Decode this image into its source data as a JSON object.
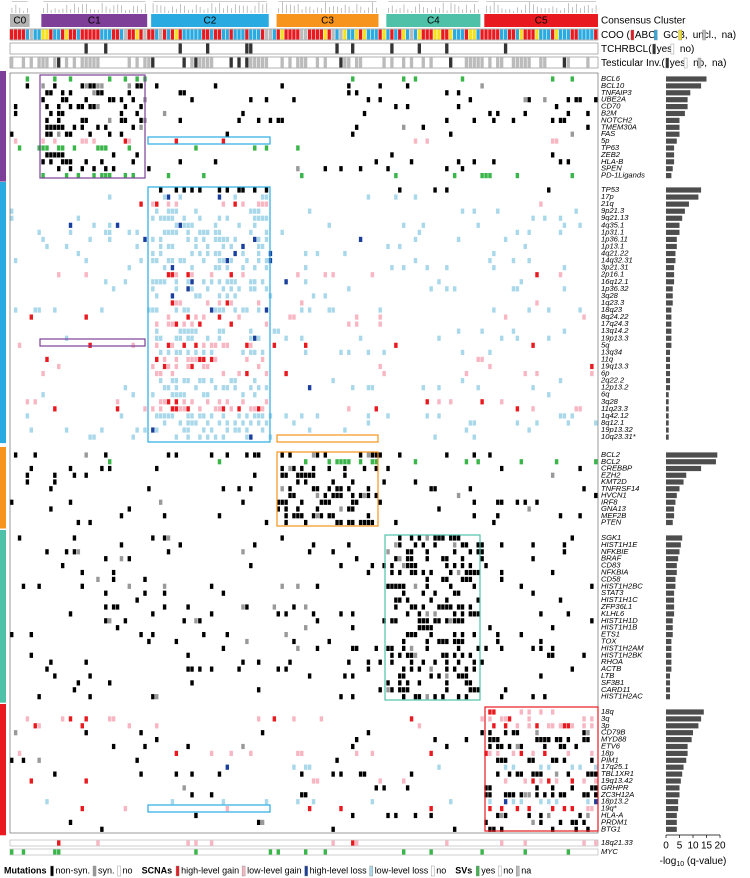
{
  "chart_data": {
    "type": "bar",
    "orientation": "horizontal",
    "clusters": [
      {
        "name": "C0",
        "color": "#b3b3b3"
      },
      {
        "name": "C1",
        "color": "#7d3f98"
      },
      {
        "name": "C2",
        "color": "#29abe2"
      },
      {
        "name": "C3",
        "color": "#f7941d"
      },
      {
        "name": "C4",
        "color": "#4fc1a8"
      },
      {
        "name": "C5",
        "color": "#e8191f"
      }
    ],
    "cluster_label": "Consensus Cluster",
    "annotations": [
      {
        "label": "COO (",
        "items": [
          {
            "label": "ABC,",
            "color": "#e8191f"
          },
          {
            "label": "GCB,",
            "color": "#29abe2"
          },
          {
            "label": "uncl.,",
            "color": "#f5e11d"
          },
          {
            "label": "na)",
            "color": "#bbbbbb"
          }
        ]
      },
      {
        "label": "TCHRBCL(",
        "items": [
          {
            "label": "yes,",
            "color": "#333333"
          },
          {
            "label": "no)",
            "color": "#ffffff"
          }
        ]
      },
      {
        "label": "Testicular Inv.(",
        "items": [
          {
            "label": "yes,",
            "color": "#333333"
          },
          {
            "label": "no,",
            "color": "#ffffff"
          },
          {
            "label": "na)",
            "color": "#bbbbbb"
          }
        ]
      }
    ],
    "groups": [
      {
        "color": "#7d3f98",
        "rows": [
          {
            "label": "BCL6",
            "color": "#39b54a",
            "value": 15
          },
          {
            "label": "BCL10",
            "color": "#000000",
            "value": 13
          },
          {
            "label": "TNFAIP3",
            "color": "#000000",
            "value": 9
          },
          {
            "label": "UBE2A",
            "color": "#000000",
            "value": 8
          },
          {
            "label": "CD70",
            "color": "#000000",
            "value": 8
          },
          {
            "label": "B2M",
            "color": "#000000",
            "value": 7
          },
          {
            "label": "NOTCH2",
            "color": "#000000",
            "value": 5
          },
          {
            "label": "TMEM30A",
            "color": "#000000",
            "value": 5
          },
          {
            "label": "FAS",
            "color": "#000000",
            "value": 5
          },
          {
            "label": "5p",
            "color": "#e8191f",
            "value": 4
          },
          {
            "label": "TP63",
            "color": "#39b54a",
            "value": 3
          },
          {
            "label": "ZEB2",
            "color": "#000000",
            "value": 3
          },
          {
            "label": "HLA-B",
            "color": "#000000",
            "value": 3
          },
          {
            "label": "SPEN",
            "color": "#000000",
            "value": 2.5
          },
          {
            "label": "PD-1Ligands",
            "color": "#39b54a",
            "value": 2
          }
        ]
      },
      {
        "color": "#29abe2",
        "rows": [
          {
            "label": "TP53",
            "color": "#000000",
            "value": 13
          },
          {
            "label": "17p",
            "color": "#29abe2",
            "value": 12
          },
          {
            "label": "21q",
            "color": "#e8191f",
            "value": 8.5
          },
          {
            "label": "9p21.3",
            "color": "#29abe2",
            "value": 7
          },
          {
            "label": "9q21.13",
            "color": "#29abe2",
            "value": 6
          },
          {
            "label": "4q35.1",
            "color": "#29abe2",
            "value": 5
          },
          {
            "label": "1p31.1",
            "color": "#29abe2",
            "value": 5
          },
          {
            "label": "1p36.11",
            "color": "#29abe2",
            "value": 4
          },
          {
            "label": "1p13.1",
            "color": "#29abe2",
            "value": 4
          },
          {
            "label": "4q21.22",
            "color": "#29abe2",
            "value": 3.5
          },
          {
            "label": "14q32.31",
            "color": "#29abe2",
            "value": 3.5
          },
          {
            "label": "3p21.31",
            "color": "#29abe2",
            "value": 3
          },
          {
            "label": "2p16.1",
            "color": "#e8191f",
            "value": 3
          },
          {
            "label": "16q12.1",
            "color": "#29abe2",
            "value": 3
          },
          {
            "label": "1p36.32",
            "color": "#29abe2",
            "value": 2.5
          },
          {
            "label": "3q28",
            "color": "#29abe2",
            "value": 2.5
          },
          {
            "label": "1q23.3",
            "color": "#e8191f",
            "value": 2.5
          },
          {
            "label": "18q23",
            "color": "#29abe2",
            "value": 2
          },
          {
            "label": "8q24.22",
            "color": "#e8191f",
            "value": 2
          },
          {
            "label": "17q24.3",
            "color": "#e8191f",
            "value": 2
          },
          {
            "label": "13q14.2",
            "color": "#29abe2",
            "value": 2
          },
          {
            "label": "19p13.3",
            "color": "#29abe2",
            "value": 2
          },
          {
            "label": "5q",
            "color": "#e8191f",
            "value": 2
          },
          {
            "label": "13q34",
            "color": "#29abe2",
            "value": 1.5
          },
          {
            "label": "11q",
            "color": "#e8191f",
            "value": 1.5
          },
          {
            "label": "19q13.3",
            "color": "#e8191f",
            "value": 1.5
          },
          {
            "label": "6p",
            "color": "#e8191f",
            "value": 1.5
          },
          {
            "label": "2q22.2",
            "color": "#29abe2",
            "value": 1.5
          },
          {
            "label": "12p13.2",
            "color": "#29abe2",
            "value": 1.5
          },
          {
            "label": "6q",
            "color": "#29abe2",
            "value": 1
          },
          {
            "label": "3q28",
            "color": "#e8191f",
            "value": 1
          },
          {
            "label": "11q23.3",
            "color": "#e8191f",
            "value": 1
          },
          {
            "label": "1q42.12",
            "color": "#29abe2",
            "value": 1
          },
          {
            "label": "8q12.1",
            "color": "#29abe2",
            "value": 1
          },
          {
            "label": "19p13.32",
            "color": "#29abe2",
            "value": 1
          },
          {
            "label": "10q23.31*",
            "color": "#29abe2",
            "value": 1
          }
        ]
      },
      {
        "color": "#f7941d",
        "rows": [
          {
            "label": "BCL2",
            "color": "#000000",
            "value": 19
          },
          {
            "label": "BCL2",
            "color": "#39b54a",
            "value": 18.5
          },
          {
            "label": "CREBBP",
            "color": "#000000",
            "value": 13
          },
          {
            "label": "EZH2",
            "color": "#000000",
            "value": 7.5
          },
          {
            "label": "KMT2D",
            "color": "#000000",
            "value": 6.5
          },
          {
            "label": "TNFRSF14",
            "color": "#000000",
            "value": 5
          },
          {
            "label": "HVCN1",
            "color": "#000000",
            "value": 4
          },
          {
            "label": "IRF8",
            "color": "#000000",
            "value": 3.5
          },
          {
            "label": "GNA13",
            "color": "#000000",
            "value": 3
          },
          {
            "label": "MEF2B",
            "color": "#000000",
            "value": 3
          },
          {
            "label": "PTEN",
            "color": "#000000",
            "value": 2.5
          }
        ]
      },
      {
        "color": "#4fc1a8",
        "rows": [
          {
            "label": "SGK1",
            "color": "#000000",
            "value": 6
          },
          {
            "label": "HIST1H1E",
            "color": "#000000",
            "value": 5.5
          },
          {
            "label": "NFKBIE",
            "color": "#000000",
            "value": 5
          },
          {
            "label": "BRAF",
            "color": "#000000",
            "value": 4.5
          },
          {
            "label": "CD83",
            "color": "#000000",
            "value": 4
          },
          {
            "label": "NFKBIA",
            "color": "#000000",
            "value": 4
          },
          {
            "label": "CD58",
            "color": "#000000",
            "value": 3.5
          },
          {
            "label": "HIST1H2BC",
            "color": "#000000",
            "value": 3.5
          },
          {
            "label": "STAT3",
            "color": "#000000",
            "value": 3
          },
          {
            "label": "HIST1H1C",
            "color": "#000000",
            "value": 3
          },
          {
            "label": "ZFP36L1",
            "color": "#000000",
            "value": 3
          },
          {
            "label": "KLHL6",
            "color": "#000000",
            "value": 3
          },
          {
            "label": "HIST1H1D",
            "color": "#000000",
            "value": 2.5
          },
          {
            "label": "HIST1H1B",
            "color": "#000000",
            "value": 2.5
          },
          {
            "label": "ETS1",
            "color": "#000000",
            "value": 2.5
          },
          {
            "label": "TOX",
            "color": "#000000",
            "value": 2
          },
          {
            "label": "HIST1H2AM",
            "color": "#000000",
            "value": 2
          },
          {
            "label": "HIST1H2BK",
            "color": "#000000",
            "value": 2
          },
          {
            "label": "RHOA",
            "color": "#000000",
            "value": 2
          },
          {
            "label": "ACTB",
            "color": "#000000",
            "value": 2
          },
          {
            "label": "LTB",
            "color": "#000000",
            "value": 1.5
          },
          {
            "label": "SF3B1",
            "color": "#000000",
            "value": 1.5
          },
          {
            "label": "CARD11",
            "color": "#000000",
            "value": 1.5
          },
          {
            "label": "HIST1H2AC",
            "color": "#000000",
            "value": 1.5
          }
        ]
      },
      {
        "color": "#e8191f",
        "rows": [
          {
            "label": "18q",
            "color": "#e8191f",
            "value": 14
          },
          {
            "label": "3q",
            "color": "#e8191f",
            "value": 13
          },
          {
            "label": "3p",
            "color": "#e8191f",
            "value": 12
          },
          {
            "label": "CD79B",
            "color": "#000000",
            "value": 10
          },
          {
            "label": "MYD88",
            "color": "#000000",
            "value": 9.5
          },
          {
            "label": "ETV6",
            "color": "#000000",
            "value": 8
          },
          {
            "label": "18p",
            "color": "#e8191f",
            "value": 8
          },
          {
            "label": "PIM1",
            "color": "#000000",
            "value": 7.5
          },
          {
            "label": "17q25.1",
            "color": "#29abe2",
            "value": 6.5
          },
          {
            "label": "TBL1XR1",
            "color": "#000000",
            "value": 6
          },
          {
            "label": "19q13.42",
            "color": "#e8191f",
            "value": 5.5
          },
          {
            "label": "GRHPR",
            "color": "#000000",
            "value": 5
          },
          {
            "label": "ZC3H12A",
            "color": "#000000",
            "value": 5
          },
          {
            "label": "18p13.2",
            "color": "#29abe2",
            "value": 4.5
          },
          {
            "label": "19q*",
            "color": "#e8191f",
            "value": 4.5
          },
          {
            "label": "HLA-A",
            "color": "#000000",
            "value": 4
          },
          {
            "label": "PRDM1",
            "color": "#000000",
            "value": 4
          },
          {
            "label": "BTG1",
            "color": "#000000",
            "value": 4
          }
        ]
      }
    ],
    "extra_rows": [
      {
        "label": "18q21.33",
        "color": "#e8191f"
      },
      {
        "label": "MYC",
        "color": "#39b54a"
      }
    ],
    "bar_color": "#4d4d4d",
    "xlim": [
      0,
      20
    ],
    "xticks": [
      0,
      5,
      10,
      15,
      20
    ],
    "xlabel": [
      "-log",
      "10",
      " (q-value)"
    ],
    "legend": [
      {
        "title": "Mutations",
        "items": [
          {
            "label": "non-syn.",
            "color": "#000000"
          },
          {
            "label": "syn.",
            "color": "#999999"
          },
          {
            "label": "no",
            "color": "#ffffff"
          }
        ]
      },
      {
        "title": "SCNAs",
        "items": [
          {
            "label": "high-level gain",
            "color": "#e8191f"
          },
          {
            "label": "low-level gain",
            "color": "#f7b6c2"
          },
          {
            "label": "high-level loss",
            "color": "#1b3f9c"
          },
          {
            "label": "low-level loss",
            "color": "#a8d8ea"
          },
          {
            "label": "no",
            "color": "#ffffff"
          }
        ]
      },
      {
        "title": "SVs",
        "items": [
          {
            "label": "yes",
            "color": "#39b54a"
          },
          {
            "label": "no",
            "color": "#ffffff"
          },
          {
            "label": "na",
            "color": "#bbbbbb"
          }
        ]
      }
    ]
  }
}
